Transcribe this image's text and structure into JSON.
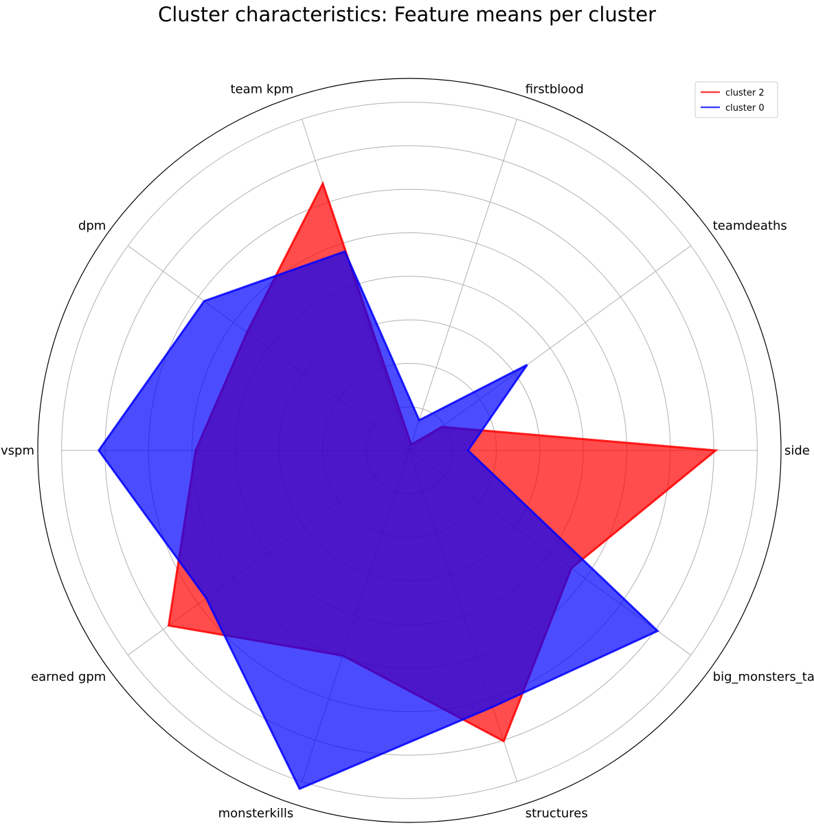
{
  "chart_data": {
    "type": "radar",
    "title": "Cluster characteristics: Feature means per cluster",
    "categories": [
      "side",
      "teamdeaths",
      "firstblood",
      "team kpm",
      "dpm",
      "vspm",
      "earned gpm",
      "monsterkills",
      "structures",
      "big_monsters_taken"
    ],
    "rlim": [
      0,
      8
    ],
    "rings": 8,
    "grid": true,
    "legend_position": "top-right",
    "series": [
      {
        "name": "cluster 2",
        "color": "#ff0000",
        "values": [
          7.05,
          0.92,
          0.14,
          6.45,
          4.62,
          4.92,
          6.85,
          4.96,
          7.03,
          4.61
        ]
      },
      {
        "name": "cluster 0",
        "color": "#0000ff",
        "values": [
          1.35,
          3.35,
          0.73,
          4.81,
          5.84,
          7.15,
          5.78,
          8.18,
          6.2,
          7.06
        ]
      }
    ]
  }
}
